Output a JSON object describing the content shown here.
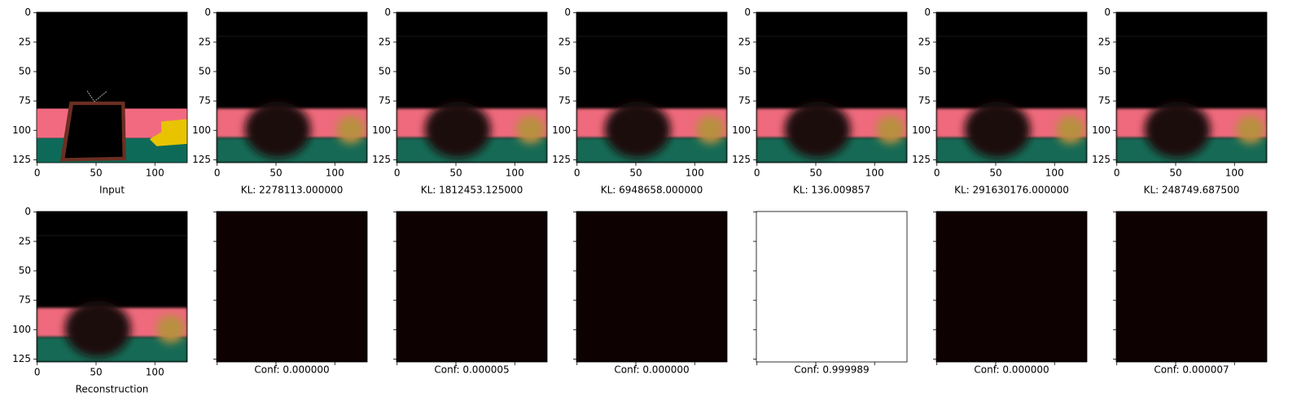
{
  "xlim": [
    -0.5,
    127.5
  ],
  "ylim": [
    127.5,
    -0.5
  ],
  "xticks": [
    0,
    50,
    100
  ],
  "yticks": [
    0,
    25,
    50,
    75,
    100,
    125
  ],
  "top_row": [
    "Input",
    "KL: 2278113.000000",
    "KL: 1812453.125000",
    "KL: 6948658.000000",
    "KL: 136.009857",
    "KL: 291630176.000000",
    "KL: 248749.687500"
  ],
  "bottom_row": [
    "Reconstruction",
    "Conf: 0.000000",
    "Conf: 0.000005",
    "Conf: 0.000000",
    "Conf: 0.999989",
    "Conf: 0.000000",
    "Conf: 0.000007"
  ]
}
